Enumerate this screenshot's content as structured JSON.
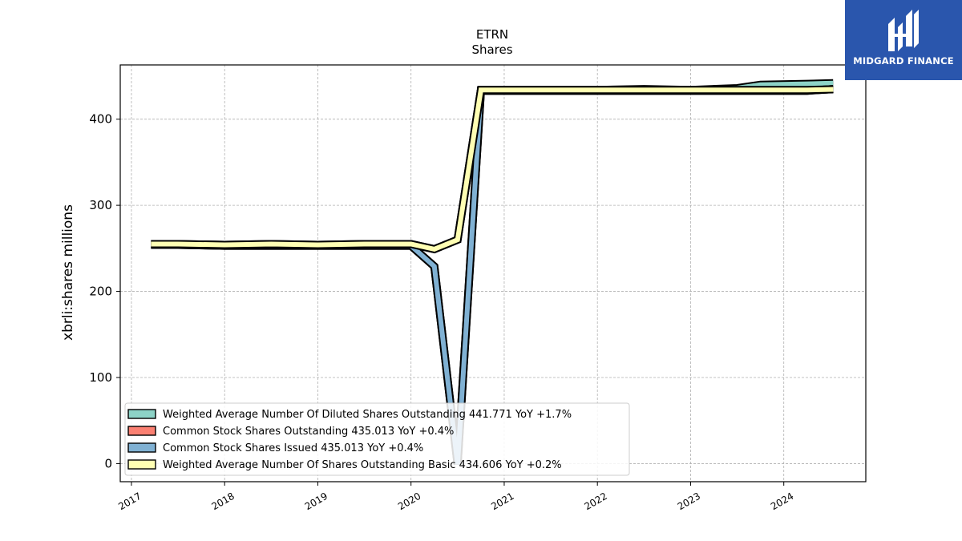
{
  "brand": {
    "name": "MIDGARD FINANCE",
    "background": "#2a56ad"
  },
  "chart_data": {
    "type": "line",
    "title": "ETRN",
    "subtitle": "Shares",
    "ylabel": "xbrli:shares millions",
    "xlabel": "",
    "x_ticks": [
      "2017",
      "2018",
      "2019",
      "2020",
      "2021",
      "2022",
      "2023",
      "2024"
    ],
    "y_ticks": [
      0,
      100,
      200,
      300,
      400
    ],
    "xlim": [
      2016.88,
      2024.88
    ],
    "ylim": [
      -21,
      463
    ],
    "grid": true,
    "legend_position": "lower-left",
    "series": [
      {
        "name": "Weighted Average Number Of Diluted Shares Outstanding",
        "legend_label": "Weighted Average Number Of Diluted Shares Outstanding  441.771 YoY +1.7%",
        "color": "#8dd3c7",
        "x": [
          2017.21,
          2017.5,
          2018.0,
          2018.5,
          2019.0,
          2019.5,
          2020.0,
          2020.25,
          2020.5,
          2020.75,
          2021.0,
          2021.5,
          2022.0,
          2022.5,
          2023.0,
          2023.5,
          2023.75,
          2024.25,
          2024.53
        ],
        "y": [
          255,
          255,
          254,
          255,
          254,
          255,
          255,
          249,
          260,
          434,
          434,
          434,
          434,
          435,
          434,
          436,
          440,
          441,
          441.771
        ]
      },
      {
        "name": "Common Stock Shares Outstanding",
        "legend_label": "Common Stock Shares Outstanding  435.013 YoY +0.4%",
        "color": "#fb8072",
        "x": [
          2017.21,
          2017.5,
          2018.0,
          2018.5,
          2019.0,
          2019.5,
          2020.0,
          2020.25,
          2020.5,
          2020.75,
          2021.0,
          2021.5,
          2022.0,
          2022.5,
          2023.0,
          2023.5,
          2024.0,
          2024.25,
          2024.53
        ],
        "y": [
          254,
          254,
          253,
          253,
          253,
          253,
          253,
          229,
          -1,
          433,
          433,
          433,
          433,
          433,
          433,
          433,
          433,
          433,
          435.013
        ]
      },
      {
        "name": "Common Stock Shares Issued",
        "legend_label": "Common Stock Shares Issued  435.013 YoY +0.4%",
        "color": "#80b1d3",
        "x": [
          2017.21,
          2017.5,
          2018.0,
          2018.5,
          2019.0,
          2019.5,
          2020.0,
          2020.25,
          2020.5,
          2020.75,
          2021.0,
          2021.5,
          2022.0,
          2022.5,
          2023.0,
          2023.5,
          2024.0,
          2024.25,
          2024.53
        ],
        "y": [
          254,
          254,
          253,
          253,
          253,
          253,
          253,
          229,
          -1,
          433,
          433,
          433,
          433,
          433,
          433,
          433,
          433,
          433,
          435.013
        ]
      },
      {
        "name": "Weighted Average Number Of Shares Outstanding Basic",
        "legend_label": "Weighted Average Number Of Shares Outstanding Basic  434.606 YoY +0.2%",
        "color": "#ffffb3",
        "x": [
          2017.21,
          2017.5,
          2018.0,
          2018.5,
          2019.0,
          2019.5,
          2020.0,
          2020.25,
          2020.5,
          2020.75,
          2021.0,
          2021.5,
          2022.0,
          2022.5,
          2023.0,
          2023.5,
          2024.0,
          2024.25,
          2024.53
        ],
        "y": [
          255,
          255,
          254,
          255,
          254,
          255,
          255,
          249,
          260,
          434,
          434,
          434,
          434,
          434,
          434,
          434,
          434,
          434,
          434.606
        ]
      }
    ]
  }
}
